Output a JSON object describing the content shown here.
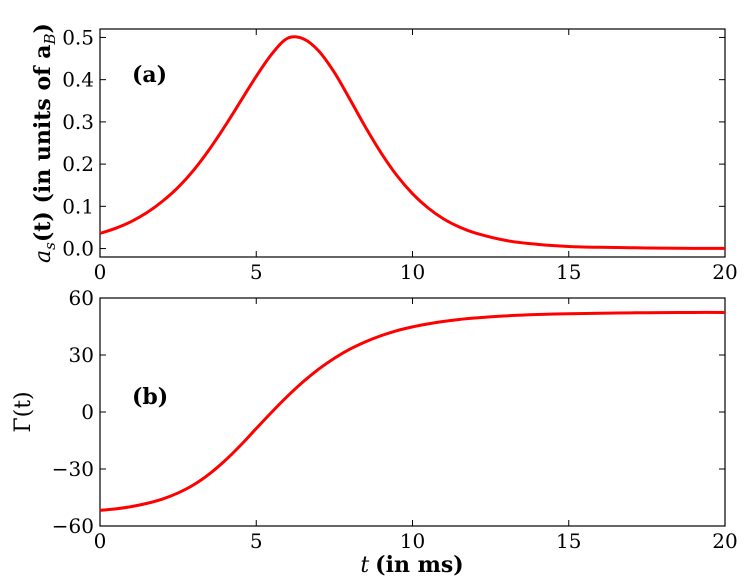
{
  "chart_data": [
    {
      "type": "line",
      "panel_tag": "(a)",
      "ylabel": "a_s(t) (in units of a_B)",
      "ylabel_math": "a",
      "ylabel_sub": "s",
      "ylabel_rest": "(t) (in units of a",
      "ylabel_sub2": "B",
      "ylabel_close": ")",
      "xlabel": "",
      "xlim": [
        0,
        20
      ],
      "ylim": [
        -0.02,
        0.52
      ],
      "xticks": [
        0,
        5,
        10,
        15,
        20
      ],
      "xtick_labels": [
        "0",
        "5",
        "10",
        "15",
        "20"
      ],
      "yticks": [
        0.0,
        0.1,
        0.2,
        0.3,
        0.4,
        0.5
      ],
      "ytick_labels": [
        "0.0",
        "0.1",
        "0.2",
        "0.3",
        "0.4",
        "0.5"
      ],
      "series": [
        {
          "color": "#ff0000",
          "x": [
            0,
            0.5,
            1,
            1.5,
            2,
            2.5,
            3,
            3.5,
            4,
            4.5,
            5,
            5.5,
            6,
            6.5,
            7,
            7.5,
            8,
            8.5,
            9,
            9.5,
            10,
            10.5,
            11,
            11.5,
            12,
            13,
            14,
            15,
            16,
            17,
            18,
            19,
            20
          ],
          "y": [
            0.036,
            0.048,
            0.064,
            0.085,
            0.112,
            0.145,
            0.186,
            0.235,
            0.29,
            0.349,
            0.408,
            0.461,
            0.498,
            0.497,
            0.468,
            0.417,
            0.353,
            0.287,
            0.226,
            0.173,
            0.13,
            0.096,
            0.07,
            0.051,
            0.037,
            0.019,
            0.01,
            0.005,
            0.003,
            0.002,
            0.001,
            0.0005,
            0.0003
          ]
        }
      ]
    },
    {
      "type": "line",
      "panel_tag": "(b)",
      "ylabel": "Γ(t)",
      "xlabel": "t (in ms)",
      "xlabel_math": "t",
      "xlabel_rest": "(in ms)",
      "xlim": [
        0,
        20
      ],
      "ylim": [
        -60,
        60
      ],
      "xticks": [
        0,
        5,
        10,
        15,
        20
      ],
      "xtick_labels": [
        "0",
        "5",
        "10",
        "15",
        "20"
      ],
      "yticks": [
        -60,
        -30,
        0,
        30,
        60
      ],
      "ytick_labels": [
        "−60",
        "−30",
        "0",
        "30",
        "60"
      ],
      "series": [
        {
          "color": "#ff0000",
          "x": [
            0,
            0.5,
            1,
            1.5,
            2,
            2.5,
            3,
            3.5,
            4,
            4.5,
            5,
            5.5,
            6,
            6.5,
            7,
            7.5,
            8,
            8.5,
            9,
            9.5,
            10,
            10.5,
            11,
            11.5,
            12,
            13,
            14,
            15,
            16,
            17,
            18,
            19,
            20
          ],
          "y": [
            -51.8,
            -51.0,
            -49.8,
            -48.1,
            -45.8,
            -42.6,
            -38.3,
            -32.6,
            -25.6,
            -17.5,
            -8.7,
            0.0,
            8.3,
            15.9,
            22.6,
            28.3,
            33.1,
            37.0,
            40.2,
            42.8,
            44.8,
            46.4,
            47.7,
            48.7,
            49.5,
            50.6,
            51.3,
            51.7,
            52.0,
            52.2,
            52.3,
            52.4,
            52.4
          ]
        }
      ]
    }
  ]
}
